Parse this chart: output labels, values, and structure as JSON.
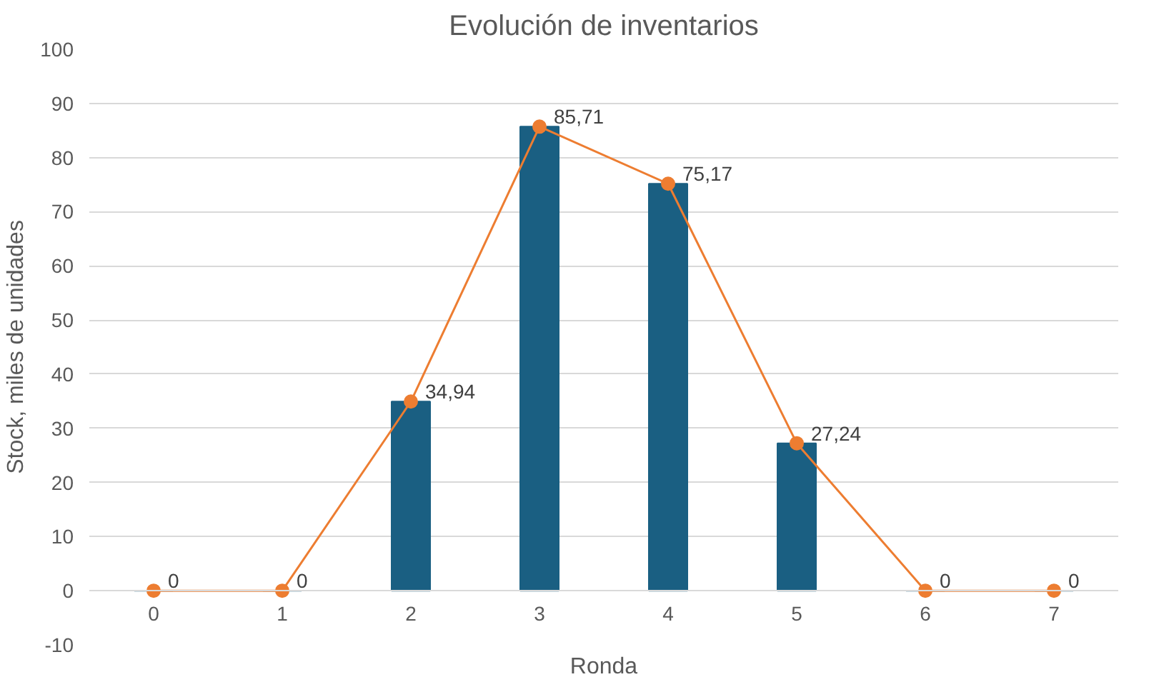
{
  "chart_data": {
    "type": "bar",
    "title": "Evolución de inventarios",
    "xlabel": "Ronda",
    "ylabel": "Stock, miles de unidades",
    "categories": [
      "0",
      "1",
      "2",
      "3",
      "4",
      "5",
      "6",
      "7"
    ],
    "series": [
      {
        "color": "#1a5f82",
        "values": [
          0,
          0,
          34.94,
          85.71,
          75.17,
          27.24,
          0,
          0
        ]
      },
      {
        "type": "line",
        "color": "#ed7d31",
        "marker": "circle",
        "values": [
          0,
          0,
          34.94,
          85.71,
          75.17,
          27.24,
          0,
          0
        ],
        "value_labels": [
          "0",
          "0",
          "34,94",
          "85,71",
          "75,17",
          "27,24",
          "0",
          "0"
        ]
      }
    ],
    "ylim": [
      -10,
      100
    ],
    "yticks": [
      -10,
      0,
      10,
      20,
      30,
      40,
      50,
      60,
      70,
      80,
      90,
      100
    ],
    "grid": "y"
  }
}
